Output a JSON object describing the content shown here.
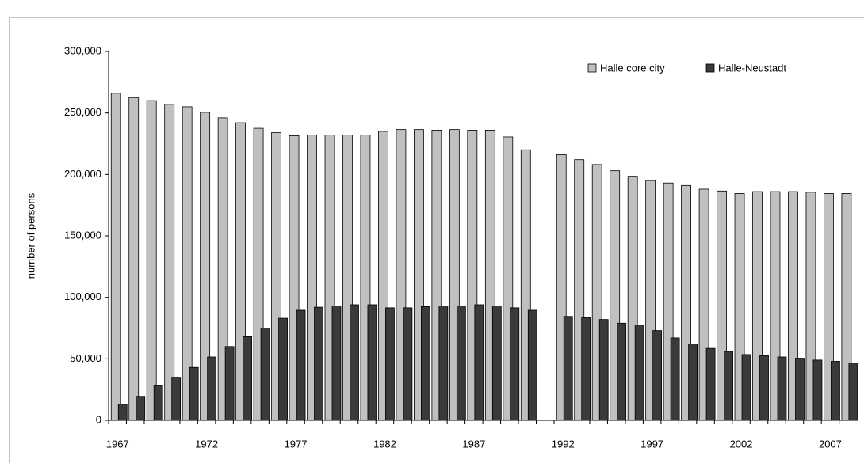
{
  "chart_data": {
    "type": "bar",
    "y_label": "number of persons",
    "categories": [
      "1967",
      null,
      null,
      null,
      null,
      "1972",
      null,
      null,
      null,
      null,
      "1977",
      null,
      null,
      null,
      null,
      "1982",
      null,
      null,
      null,
      null,
      "1987",
      null,
      null,
      null,
      null,
      "1992",
      null,
      null,
      null,
      null,
      "1997",
      null,
      null,
      null,
      null,
      "2002",
      null,
      null,
      null,
      null,
      "2007",
      null
    ],
    "series": [
      {
        "name": "Halle core city",
        "color": "#c0c0c0",
        "values": [
          266000,
          262500,
          260000,
          257000,
          255000,
          250500,
          246000,
          242000,
          237500,
          234000,
          231500,
          232000,
          232000,
          232000,
          232000,
          235000,
          236500,
          236500,
          236000,
          236500,
          236000,
          236000,
          230500,
          220000,
          null,
          216000,
          212000,
          208000,
          203000,
          198500,
          195000,
          193000,
          191000,
          188000,
          186500,
          184500,
          186000,
          186000,
          186000,
          185500,
          184500,
          184500
        ]
      },
      {
        "name": "Halle-Neustadt",
        "color": "#3a3a3a",
        "values": [
          13000,
          19500,
          28000,
          35000,
          43000,
          51500,
          60000,
          68000,
          75000,
          83000,
          89500,
          92000,
          93000,
          94000,
          94000,
          91500,
          91500,
          92500,
          93000,
          93000,
          94000,
          93000,
          91500,
          89500,
          null,
          84500,
          83500,
          82000,
          79000,
          77500,
          73000,
          67000,
          62000,
          58500,
          56000,
          53500,
          52500,
          51500,
          50500,
          49000,
          48000,
          46500
        ]
      }
    ],
    "ylim": [
      0,
      300000
    ],
    "yticks": [
      0,
      {
        "value": 50000,
        "label": "50,000"
      },
      {
        "value": 100000,
        "label": "100,000"
      },
      {
        "value": 150000,
        "label": "150,000"
      },
      {
        "value": 200000,
        "label": "200,000"
      },
      {
        "value": 250000,
        "label": "250,000"
      },
      {
        "value": 300000,
        "label": "300,000"
      }
    ],
    "legend": "upper right",
    "grid": false
  }
}
